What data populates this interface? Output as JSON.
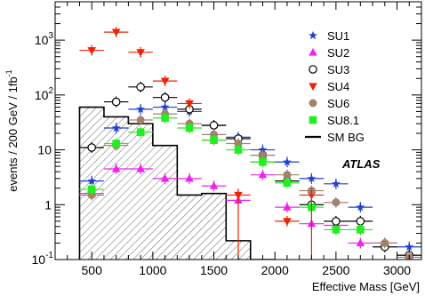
{
  "chart_data": {
    "type": "scatter",
    "xlabel": "Effective Mass [GeV]",
    "ylabel": "events / 200 GeV / 1fb",
    "ylabel_sup": "-1",
    "xlim": [
      200,
      3200
    ],
    "ylim": [
      0.1,
      5000
    ],
    "yscale": "log",
    "x_ticks": [
      500,
      1000,
      1500,
      2000,
      2500,
      3000
    ],
    "x_tick_labels": [
      "500",
      "1000",
      "1500",
      "2000",
      "2500",
      "3000"
    ],
    "y_ticks": [
      {
        "value": 0.1,
        "base": "10",
        "exp": "-1"
      },
      {
        "value": 1,
        "base": "1",
        "exp": ""
      },
      {
        "value": 10,
        "base": "10",
        "exp": ""
      },
      {
        "value": 100,
        "base": "10",
        "exp": "2"
      },
      {
        "value": 1000,
        "base": "10",
        "exp": "3"
      }
    ],
    "annotation": "ATLAS",
    "legend_position": "upper-right",
    "background": {
      "name": "SM BG",
      "style": "hatched-histogram",
      "bins": [
        {
          "x0": 400,
          "x1": 600,
          "y": 60
        },
        {
          "x0": 600,
          "x1": 800,
          "y": 40
        },
        {
          "x0": 800,
          "x1": 1000,
          "y": 30
        },
        {
          "x0": 1000,
          "x1": 1200,
          "y": 12
        },
        {
          "x0": 1200,
          "x1": 1400,
          "y": 1.5
        },
        {
          "x0": 1400,
          "x1": 1600,
          "y": 1.6
        },
        {
          "x0": 1600,
          "x1": 1800,
          "y": 0.22
        },
        {
          "x0": 1800,
          "x1": 2000,
          "y": 0.1
        }
      ]
    },
    "series": [
      {
        "name": "SU1",
        "marker": "star",
        "color": "#1f3fcf",
        "x": [
          500,
          700,
          900,
          1100,
          1300,
          1500,
          1700,
          1900,
          2100,
          2300,
          2500,
          2700,
          2900,
          3100
        ],
        "y": [
          2.7,
          25,
          55,
          60,
          50,
          28,
          17,
          10,
          6,
          3,
          2.4,
          0.9,
          0.2,
          0.17
        ]
      },
      {
        "name": "SU2",
        "marker": "triangle-up",
        "color": "#ee22ee",
        "x": [
          500,
          700,
          900,
          1100,
          1300,
          1500,
          1700,
          1900,
          2100,
          2300,
          2500,
          2700,
          2900,
          3100
        ],
        "y": [
          1.6,
          4.5,
          4.5,
          3.0,
          3.0,
          2.2,
          1.2,
          3.5,
          0.9,
          0.45,
          0.42,
          0.2,
          0.2,
          0.12
        ]
      },
      {
        "name": "SU3",
        "marker": "circle-open",
        "color": "#000000",
        "x": [
          500,
          700,
          900,
          1100,
          1300,
          1500,
          1700,
          1900,
          2100,
          2300,
          2500,
          2700,
          2900,
          3100
        ],
        "y": [
          11,
          75,
          140,
          90,
          55,
          28,
          16,
          8,
          2.7,
          1.0,
          0.5,
          0.5,
          0.17,
          0.12
        ]
      },
      {
        "name": "SU4",
        "marker": "triangle-down",
        "color": "#ee2200",
        "x": [
          500,
          700,
          900,
          1100,
          1300,
          1500,
          1700,
          1900,
          2100,
          2300,
          2500,
          2700,
          2900,
          3100
        ],
        "y": [
          650,
          1400,
          600,
          180,
          70,
          15,
          1.5,
          6,
          0.5,
          1.5,
          0.1,
          0.1,
          0.1,
          0.1
        ]
      },
      {
        "name": "SU6",
        "marker": "circle-filled",
        "color": "#a0826d",
        "x": [
          500,
          700,
          900,
          1100,
          1300,
          1500,
          1700,
          1900,
          2100,
          2300,
          2500,
          2700,
          2900,
          3100
        ],
        "y": [
          1.5,
          12,
          35,
          45,
          30,
          19,
          13,
          8,
          3.5,
          1.8,
          1.1,
          0.35,
          0.2,
          0.11
        ]
      },
      {
        "name": "SU8.1",
        "marker": "square-filled",
        "color": "#22ee22",
        "x": [
          500,
          700,
          900,
          1100,
          1300,
          1500,
          1700,
          1900,
          2100,
          2300,
          2500,
          2700,
          2900,
          3100
        ],
        "y": [
          1.9,
          13,
          21,
          38,
          25,
          15,
          10,
          6,
          2.5,
          0.9,
          0.35,
          0.35,
          0.1,
          0.1
        ]
      }
    ]
  }
}
